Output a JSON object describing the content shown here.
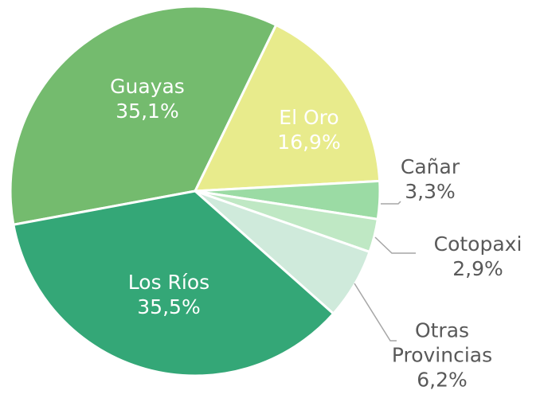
{
  "chart_data": {
    "type": "pie",
    "categories": [
      "Guayas",
      "El Oro",
      "Cañar",
      "Cotopaxi",
      "Otras Provincias",
      "Los Ríos"
    ],
    "values": [
      35.1,
      16.9,
      3.3,
      2.9,
      6.2,
      35.5
    ],
    "value_labels": [
      "35,1%",
      "16,9%",
      "3,3%",
      "2,9%",
      "6,2%",
      "35,5%"
    ],
    "colors": [
      "#74bb6e",
      "#e8eb8c",
      "#9bdba4",
      "#bfe8c4",
      "#cfeadb",
      "#34a777"
    ]
  }
}
